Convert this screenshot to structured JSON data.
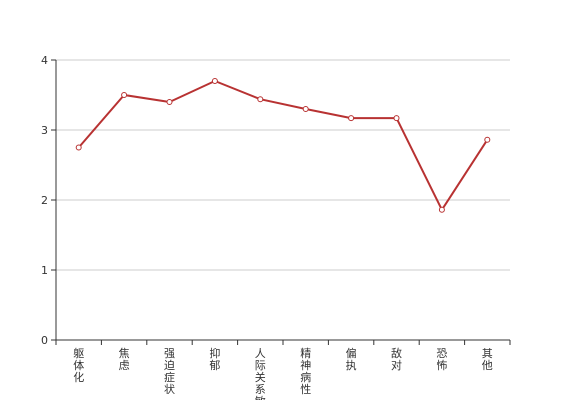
{
  "chart_data": {
    "type": "line",
    "categories": [
      "躯体化",
      "焦虑",
      "强迫症状",
      "抑郁",
      "人际关系敏感",
      "精神病性",
      "偏执",
      "敌对",
      "恐怖",
      "其他"
    ],
    "series": [
      {
        "values": [
          2.75,
          3.5,
          3.4,
          3.7,
          3.44,
          3.3,
          3.17,
          3.17,
          1.86,
          2.86
        ]
      }
    ],
    "ylim": [
      0,
      4
    ],
    "yticks": [
      0,
      1,
      2,
      3,
      4
    ],
    "grid": true,
    "legend": "none",
    "line_color": "#b83232",
    "grid_color": "#cccccc",
    "axis_color": "#333333"
  }
}
